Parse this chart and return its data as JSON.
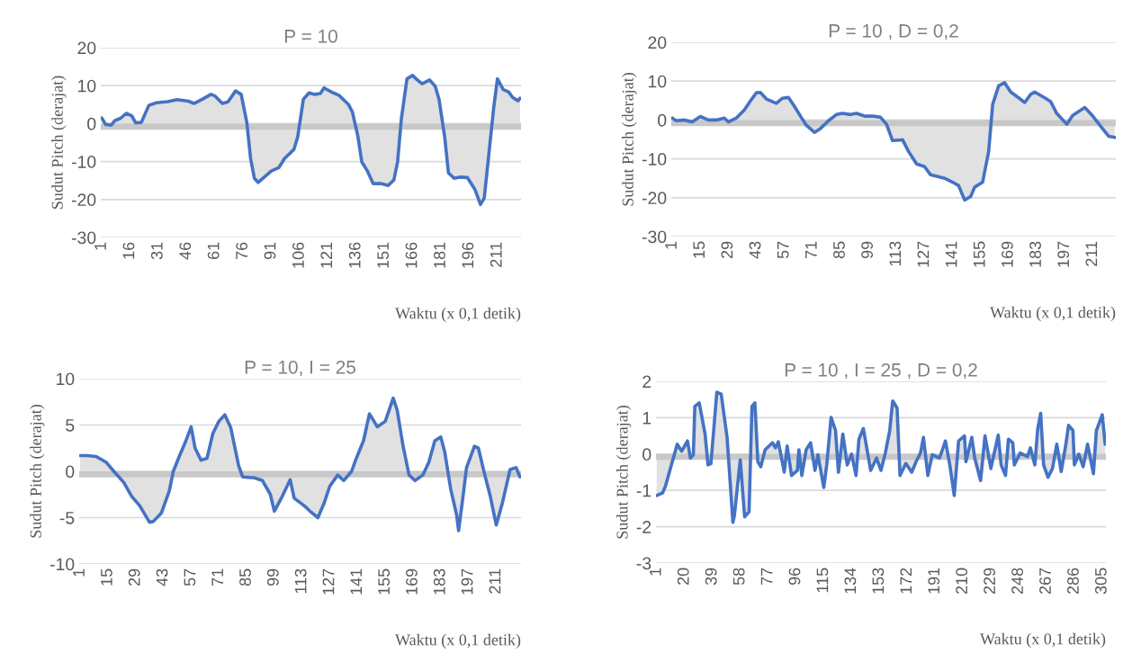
{
  "chart_data": [
    {
      "type": "area",
      "title": "P = 10",
      "xlabel": "Waktu (x 0,1 detik)",
      "ylabel": "Sudut Pitch (derajat)",
      "grid": "y",
      "xlim": [
        0.5,
        223.5
      ],
      "xticks": [
        1,
        16,
        31,
        46,
        61,
        76,
        91,
        106,
        121,
        136,
        151,
        166,
        181,
        196,
        211
      ],
      "ylim": [
        -30,
        20
      ],
      "yticks": [
        -30,
        -20,
        -10,
        0,
        10,
        20
      ],
      "bands": [
        {
          "axis": "y",
          "from": -1.6,
          "to": 0,
          "color": "#c8c8c8"
        }
      ],
      "x": [
        1,
        3,
        6,
        8,
        11,
        14,
        17,
        19,
        22,
        26,
        30,
        36,
        41,
        47,
        50,
        55,
        59,
        61,
        65,
        68,
        72,
        75,
        78,
        80,
        82,
        84,
        87,
        91,
        95,
        98,
        103,
        105,
        108,
        111,
        114,
        117,
        119,
        123,
        127,
        132,
        134,
        137,
        139,
        142,
        145,
        149,
        153,
        156,
        158,
        160,
        163,
        166,
        168,
        171,
        175,
        178,
        180,
        183,
        185,
        188,
        191,
        195,
        199,
        202,
        204,
        206,
        209,
        211,
        214,
        217,
        219,
        222,
        223
      ],
      "series": [
        {
          "color": "#4472c4",
          "values": [
            1.5,
            -0.2,
            -0.4,
            0.8,
            1.4,
            2.7,
            2,
            0.2,
            0.3,
            4.8,
            5.5,
            5.8,
            6.3,
            5.9,
            5.3,
            6.6,
            7.7,
            7.3,
            5.3,
            5.7,
            8.6,
            7.7,
            0.3,
            -9.2,
            -14.4,
            -15.5,
            -14.2,
            -12.5,
            -11.6,
            -9.2,
            -6.8,
            -3.5,
            6.4,
            8.1,
            7.7,
            7.9,
            9.4,
            8.3,
            7.4,
            5.0,
            3.1,
            -3.5,
            -10.1,
            -12.5,
            -15.8,
            -15.8,
            -16.3,
            -14.9,
            -10.1,
            1.2,
            11.8,
            12.7,
            11.7,
            10.5,
            11.5,
            9.8,
            6.4,
            -3.5,
            -13,
            -14.4,
            -14.1,
            -14.2,
            -17.3,
            -21.3,
            -19.6,
            -10.1,
            4.1,
            11.8,
            9.0,
            8.3,
            6.9,
            6.0,
            6.7
          ]
        }
      ]
    },
    {
      "type": "area",
      "title": "P = 10 , D = 0,2",
      "xlabel": "Waktu (x 0,1 detik)",
      "ylabel": "Sudut Pitch (derajat)",
      "grid": "y",
      "xlim": [
        0.5,
        222.5
      ],
      "xticks": [
        1,
        15,
        29,
        43,
        57,
        71,
        85,
        99,
        113,
        127,
        141,
        155,
        169,
        183,
        197,
        211
      ],
      "ylim": [
        -30,
        20
      ],
      "yticks": [
        -30,
        -20,
        -10,
        0,
        10,
        20
      ],
      "bands": [
        {
          "axis": "y",
          "from": -1.6,
          "to": 0,
          "color": "#c8c8c8"
        }
      ],
      "x": [
        1,
        3,
        7,
        11,
        15,
        19,
        23,
        27,
        29,
        33,
        37,
        40,
        43,
        45,
        48,
        53,
        56,
        59,
        62,
        65,
        68,
        72,
        75,
        79,
        83,
        86,
        90,
        93,
        97,
        101,
        105,
        108,
        111,
        116,
        119,
        123,
        127,
        130,
        137,
        141,
        144,
        147,
        150,
        152,
        156,
        159,
        161,
        164,
        167,
        170,
        174,
        177,
        180,
        182,
        187,
        190,
        193,
        198,
        201,
        207,
        211,
        216,
        219,
        222
      ],
      "series": [
        {
          "color": "#4472c4",
          "values": [
            0.5,
            -0.2,
            0,
            -0.5,
            0.9,
            0,
            0,
            0.5,
            -0.5,
            0.5,
            2.6,
            4.9,
            7,
            7.1,
            5.4,
            4.3,
            5.6,
            5.8,
            3.5,
            1.0,
            -1.4,
            -3.2,
            -2.2,
            -0.2,
            1.4,
            1.7,
            1.4,
            1.7,
            1.0,
            1.0,
            0.7,
            -1.1,
            -5.3,
            -5.1,
            -8.1,
            -11.3,
            -12,
            -14.1,
            -15,
            -16,
            -16.9,
            -20.6,
            -19.7,
            -17.3,
            -16,
            -8.1,
            4,
            8.8,
            9.6,
            7.2,
            5.7,
            4.5,
            6.6,
            7.2,
            5.7,
            4.7,
            1.7,
            -1.1,
            1.2,
            3.2,
            1.0,
            -2.3,
            -4.2,
            -4.5
          ]
        }
      ]
    },
    {
      "type": "area",
      "title": "P = 10, I = 25",
      "xlabel": "Waktu (x 0,1 detik)",
      "ylabel": "Sudut Pitch (derajat)",
      "grid": "y",
      "xlim": [
        0.5,
        223.5
      ],
      "xticks": [
        1,
        15,
        29,
        43,
        57,
        71,
        85,
        99,
        113,
        127,
        141,
        155,
        169,
        183,
        197,
        211
      ],
      "ylim": [
        -10,
        10
      ],
      "yticks": [
        -10,
        -5,
        0,
        5,
        10
      ],
      "bands": [
        {
          "axis": "y",
          "from": -0.65,
          "to": 0,
          "color": "#c8c8c8"
        }
      ],
      "x": [
        1,
        4,
        9,
        14,
        18,
        23,
        27,
        31,
        36,
        38,
        42,
        46,
        48,
        51,
        54,
        57,
        59,
        62,
        65,
        68,
        71,
        74,
        77,
        81,
        83,
        89,
        93,
        97,
        99,
        103,
        107,
        109,
        114,
        117,
        121,
        124,
        127,
        131,
        134,
        138,
        140,
        144,
        147,
        151,
        155,
        159,
        161,
        164,
        167,
        170,
        174,
        177,
        180,
        183,
        185,
        188,
        191,
        192,
        194,
        196,
        200,
        202,
        205,
        208,
        211,
        214,
        218,
        221,
        223
      ],
      "series": [
        {
          "color": "#4472c4",
          "values": [
            1.7,
            1.7,
            1.6,
            1.0,
            0,
            -1.2,
            -2.7,
            -3.7,
            -5.5,
            -5.4,
            -4.5,
            -2.1,
            0,
            1.6,
            3.1,
            4.8,
            2.5,
            1.2,
            1.4,
            4.1,
            5.4,
            6.1,
            4.7,
            0.6,
            -0.6,
            -0.7,
            -1.0,
            -2.5,
            -4.3,
            -2.7,
            -0.9,
            -2.9,
            -3.7,
            -4.3,
            -5.0,
            -3.5,
            -1.6,
            -0.4,
            -1.0,
            0,
            1.2,
            3.3,
            6.2,
            4.8,
            5.4,
            7.9,
            6.6,
            2.7,
            -0.4,
            -1.0,
            -0.4,
            1.0,
            3.3,
            3.7,
            2.1,
            -1.9,
            -4.7,
            -6.4,
            -3.1,
            0.4,
            2.7,
            2.5,
            -0.2,
            -2.7,
            -5.8,
            -3.5,
            0.2,
            0.4,
            -0.6
          ]
        }
      ]
    },
    {
      "type": "area",
      "title": "P = 10 , I = 25 , D = 0,2",
      "xlabel": "Waktu (x 0,1 detik)",
      "ylabel": "Sudut Pitch (derajat)",
      "grid": "y",
      "xlim": [
        0.5,
        307.5
      ],
      "xticks": [
        1,
        20,
        39,
        58,
        77,
        96,
        115,
        134,
        153,
        172,
        191,
        210,
        229,
        248,
        267,
        286,
        305
      ],
      "ylim": [
        -3,
        2
      ],
      "yticks": [
        -3,
        -2,
        -1,
        0,
        1,
        2
      ],
      "bands": [
        {
          "axis": "y",
          "from": -0.16,
          "to": 0,
          "color": "#c8c8c8"
        }
      ],
      "x": [
        1,
        5,
        7,
        11,
        15,
        18,
        22,
        24,
        26,
        27,
        30,
        34,
        36,
        38,
        42,
        45,
        49,
        53,
        54,
        58,
        61,
        64,
        66,
        68,
        70,
        72,
        75,
        80,
        82,
        84,
        88,
        90,
        93,
        97,
        98,
        100,
        103,
        106,
        109,
        111,
        115,
        117,
        120,
        123,
        125,
        128,
        131,
        134,
        137,
        139,
        142,
        147,
        151,
        154,
        157,
        160,
        162,
        165,
        167,
        171,
        175,
        178,
        181,
        183,
        186,
        189,
        194,
        198,
        201,
        204,
        207,
        211,
        212,
        216,
        218,
        222,
        225,
        229,
        234,
        236,
        239,
        241,
        244,
        245,
        249,
        254,
        256,
        259,
        261,
        263,
        265,
        268,
        271,
        274,
        277,
        280,
        282,
        285,
        286,
        289,
        292,
        295,
        299,
        301,
        305,
        307
      ],
      "series": [
        {
          "color": "#4472c4",
          "values": [
            -1.14,
            -1.07,
            -0.88,
            -0.3,
            0.27,
            0.08,
            0.36,
            -0.11,
            -0.02,
            1.31,
            1.41,
            0.55,
            -0.3,
            -0.26,
            1.7,
            1.65,
            0.46,
            -1.88,
            -1.69,
            -0.16,
            -1.73,
            -1.59,
            1.31,
            1.41,
            -0.21,
            -0.35,
            0.12,
            0.31,
            0.17,
            0.34,
            -0.5,
            0.22,
            -0.59,
            -0.45,
            0.12,
            -0.59,
            0.12,
            0.31,
            -0.45,
            -0.02,
            -0.92,
            -0.3,
            1.01,
            0.65,
            -0.5,
            0.55,
            -0.3,
            0,
            -0.59,
            0.41,
            0.7,
            -0.45,
            -0.11,
            -0.45,
            0.03,
            0.65,
            1.46,
            1.27,
            -0.59,
            -0.26,
            -0.5,
            -0.21,
            0.03,
            0.46,
            -0.59,
            -0.02,
            -0.11,
            0.36,
            -0.3,
            -1.14,
            0.36,
            0.5,
            -0.21,
            0.46,
            -0.11,
            -0.73,
            0.5,
            -0.4,
            0.52,
            -0.3,
            -0.59,
            0.41,
            0.31,
            -0.3,
            0.03,
            -0.07,
            0.17,
            -0.3,
            0.7,
            1.12,
            -0.3,
            -0.64,
            -0.4,
            0.27,
            -0.48,
            0.22,
            0.79,
            0.65,
            -0.3,
            0,
            -0.35,
            0.27,
            -0.54,
            0.65,
            1.08,
            0.27
          ]
        }
      ]
    }
  ]
}
